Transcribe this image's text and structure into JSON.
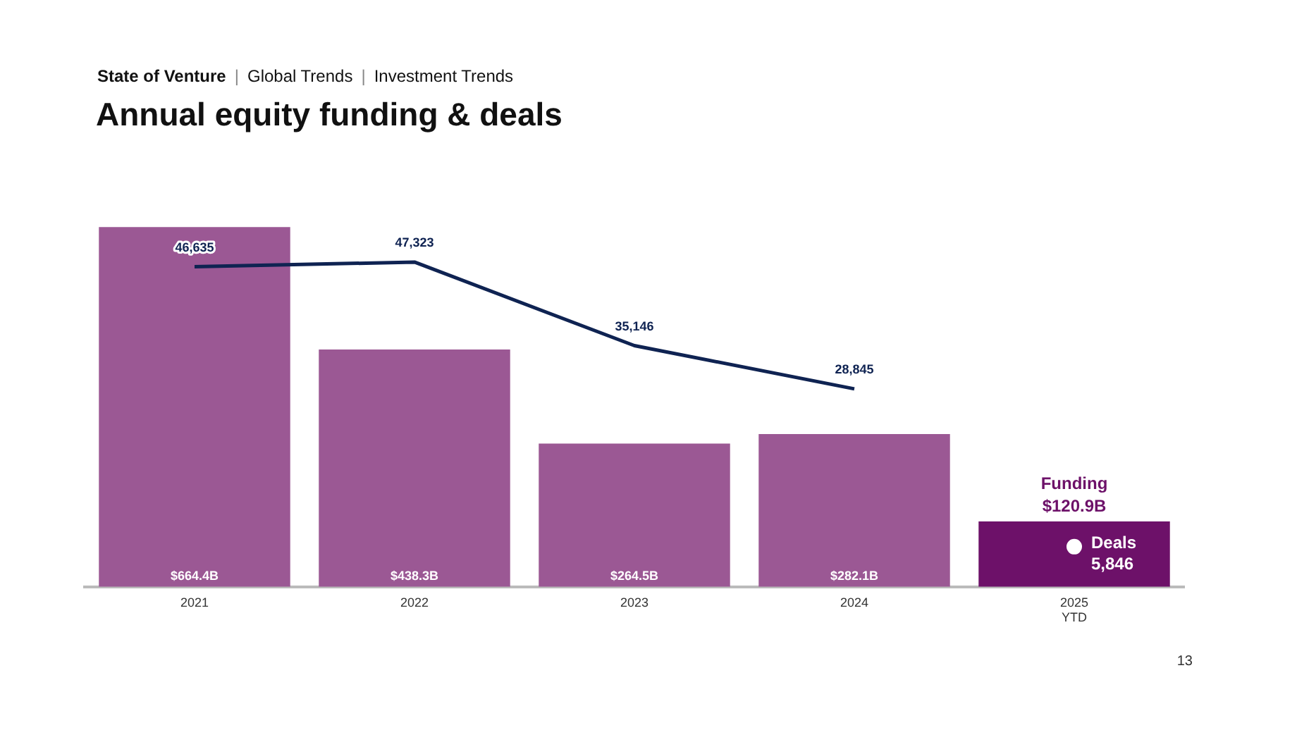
{
  "chart_data": {
    "type": "bar",
    "title": "Annual equity funding & deals",
    "subtitle": "State of Venture | Global Trends | Investment Trends",
    "categories": [
      "2021",
      "2022",
      "2023",
      "2024",
      "2025 YTD"
    ],
    "series": [
      {
        "name": "Funding",
        "colors": [
          "#9b5894",
          "#9b5894",
          "#9b5894",
          "#9b5894",
          "#6d1169"
        ],
        "values": [
          664.4,
          438.3,
          264.5,
          282.1,
          120.9
        ],
        "value_labels": [
          "$664.4B",
          "$438.3B",
          "$264.5B",
          "$282.1B",
          "$120.9B"
        ]
      },
      {
        "type": "line",
        "color": "#0f2352",
        "axis": "y2",
        "marker": "none",
        "values": [
          46635,
          47323,
          35146,
          28845,
          null
        ],
        "value_labels": [
          "46,635",
          "47,323",
          "35,146",
          "28,845",
          null
        ]
      },
      {
        "name": "Deals",
        "type": "scatter",
        "color": "#ffffff",
        "axis": "y2",
        "marker": "circle",
        "values": [
          null,
          null,
          null,
          null,
          5846
        ],
        "value_labels": [
          null,
          null,
          null,
          null,
          "5,846"
        ]
      }
    ],
    "tick_labels": "x",
    "grid": false,
    "legend": false,
    "annotations": [
      "13"
    ]
  }
}
